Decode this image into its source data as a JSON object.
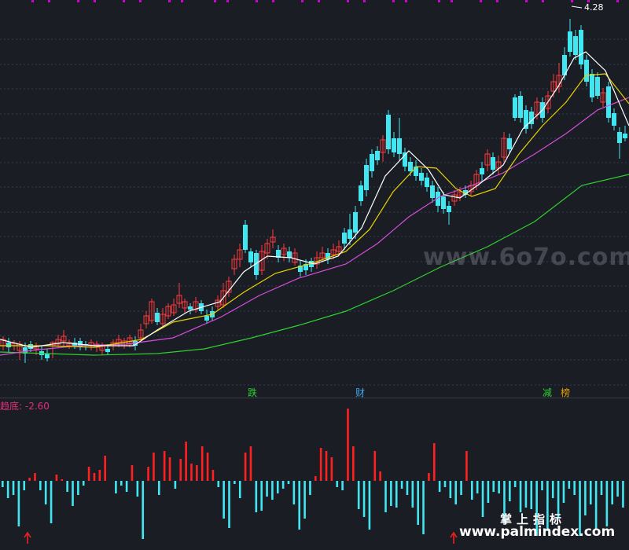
{
  "price_chart": {
    "high_label": "4.28",
    "watermark": "www.6o7o.com",
    "colors": {
      "up": "#ff3b3b",
      "down": "#41e6f0",
      "ma_short": "#ffffff",
      "ma_mid": "#e6d300",
      "ma_long": "#d44fd8",
      "ma_longest": "#2ed12e",
      "background": "#1b1d25",
      "grid": "#2f3e58",
      "top_markers": "#d400d4"
    },
    "event_tags": [
      {
        "text": "跌",
        "color": "#2ed12e"
      },
      {
        "text": "财",
        "color": "#41a8f0"
      },
      {
        "text": "减",
        "color": "#2ed12e"
      },
      {
        "text": "榜",
        "color": "#e8a000"
      }
    ]
  },
  "indicator": {
    "label": "趋底: -2.60",
    "colors": {
      "positive": "#ff2020",
      "negative": "#41e6f0",
      "arrow": "#ff2020"
    }
  },
  "watermark_cn": "掌上指标",
  "watermark_site": "www.palmindex.com"
}
